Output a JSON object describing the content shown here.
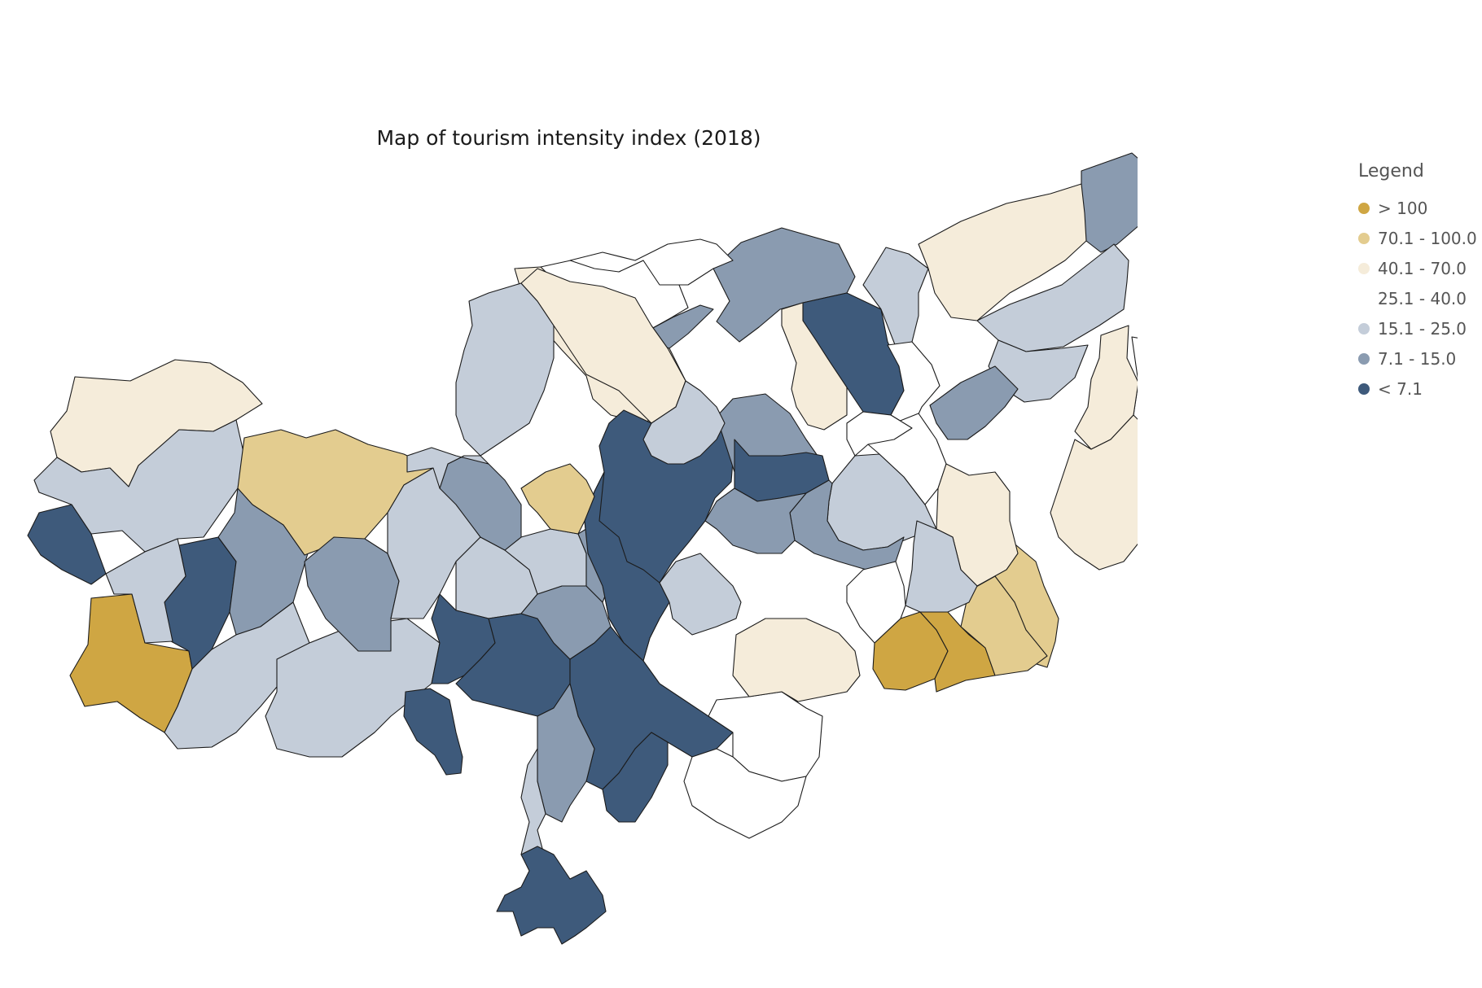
{
  "title": "Map of tourism intensity index (2018)",
  "legend": {
    "title": "Legend",
    "items": [
      {
        "label": "> 100",
        "color": "#cfa643"
      },
      {
        "label": "70.1 - 100.0",
        "color": "#e3cc8f"
      },
      {
        "label": "40.1 - 70.0",
        "color": "#f5ecda"
      },
      {
        "label": "25.1 - 40.0",
        "color": "#ffffff"
      },
      {
        "label": "15.1 - 25.0",
        "color": "#c4cdd9"
      },
      {
        "label": "7.1 - 15.0",
        "color": "#8a9bb0"
      },
      {
        "label": "< 7.1",
        "color": "#3e5a7b"
      }
    ]
  },
  "regions": [
    {
      "cls": 2
    },
    {
      "cls": 4
    },
    {
      "cls": 6
    },
    {
      "cls": 0
    },
    {
      "cls": 6
    },
    {
      "cls": 5
    },
    {
      "cls": 1
    },
    {
      "cls": 4
    },
    {
      "cls": 4
    },
    {
      "cls": 4
    },
    {
      "cls": 2
    },
    {
      "cls": 3
    },
    {
      "cls": 5
    },
    {
      "cls": 5
    },
    {
      "cls": 2
    },
    {
      "cls": 6
    },
    {
      "cls": 4
    },
    {
      "cls": 2
    },
    {
      "cls": 5
    },
    {
      "cls": 4
    },
    {
      "cls": 3
    },
    {
      "cls": 4
    },
    {
      "cls": 2
    },
    {
      "cls": 3
    },
    {
      "cls": 2
    },
    {
      "cls": 2
    },
    {
      "cls": 0
    },
    {
      "cls": 1
    },
    {
      "cls": 6
    },
    {
      "cls": 5
    },
    {
      "cls": 6
    },
    {
      "cls": 4
    },
    {
      "cls": 5
    },
    {
      "cls": 3
    },
    {
      "cls": 5
    },
    {
      "cls": 2
    },
    {
      "cls": 0
    },
    {
      "cls": 0
    },
    {
      "cls": 1
    },
    {
      "cls": 4
    },
    {
      "cls": 3
    },
    {
      "cls": 3
    },
    {
      "cls": 5
    },
    {
      "cls": 4
    },
    {
      "cls": 4
    },
    {
      "cls": 6
    },
    {
      "cls": 6
    },
    {
      "cls": 6
    },
    {
      "cls": 5
    },
    {
      "cls": 4
    },
    {
      "cls": 5
    },
    {
      "cls": 6
    },
    {
      "cls": 6
    },
    {
      "cls": 5
    },
    {
      "cls": 6
    },
    {
      "cls": 4
    },
    {
      "cls": 6
    },
    {
      "cls": 3
    },
    {
      "cls": 3
    },
    {
      "cls": 2
    },
    {
      "cls": 4
    },
    {
      "cls": 1
    },
    {
      "cls": 5
    },
    {
      "cls": 4
    },
    {
      "cls": 2
    },
    {
      "cls": 3
    },
    {
      "cls": 4
    },
    {
      "cls": 5
    },
    {
      "cls": 4
    }
  ]
}
